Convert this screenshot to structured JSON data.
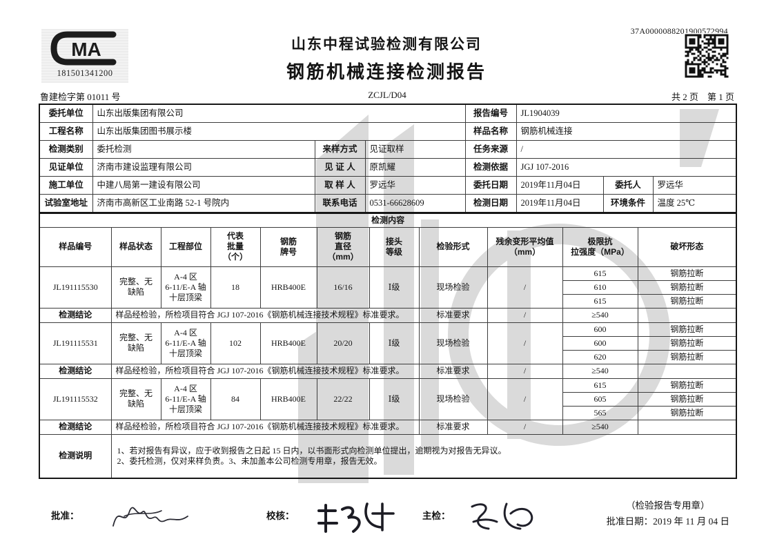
{
  "header": {
    "cma_mark": "MA",
    "cma_number": "181501341200",
    "company": "山东中程试验检测有限公司",
    "report_title": "钢筋机械连接检测报告",
    "cert_no": "鲁建检字第 01011 号",
    "doc_code": "ZCJL/D04",
    "page_info": "共 2 页　第 1 页",
    "barcode_number": "37A0000088201900572994"
  },
  "info": {
    "client_label": "委托单位",
    "client": "山东出版集团有限公司",
    "project_label": "工程名称",
    "project": "山东出版集团图书展示楼",
    "test_type_label": "检测类别",
    "test_type": "委托检测",
    "sampling_method_label": "来样方式",
    "sampling_method": "见证取样",
    "witness_unit_label": "见证单位",
    "witness_unit": "济南市建设监理有限公司",
    "witness_label": "见 证 人",
    "witness": "原凯耀",
    "builder_label": "施工单位",
    "builder": "中建八局第一建设有限公司",
    "sampler_label": "取 样 人",
    "sampler": "罗远华",
    "lab_address_label": "试验室地址",
    "lab_address": "济南市高新区工业南路 52-1 号院内",
    "phone_label": "联系电话",
    "phone": "0531-66628609",
    "report_no_label": "报告编号",
    "report_no": "JL1904039",
    "sample_name_label": "样品名称",
    "sample_name": "钢筋机械连接",
    "task_source_label": "任务来源",
    "task_source": "/",
    "basis_label": "检测依据",
    "basis": "JGJ 107-2016",
    "commission_date_label": "委托日期",
    "commission_date": "2019年11月04日",
    "principal_label": "委托人",
    "principal": "罗远华",
    "test_date_label": "检测日期",
    "test_date": "2019年11月04日",
    "environment_label": "环境条件",
    "environment": "温度 25℃"
  },
  "content": {
    "section_title": "检测内容",
    "col_sample_id": "样品编号",
    "col_state": "样品状态",
    "col_location": "工程部位",
    "col_batch": "代表\n批量\n（个）",
    "col_grade": "钢筋\n牌号",
    "col_diameter": "钢筋\n直径\n（mm）",
    "col_level": "接头\n等级",
    "col_form": "检验形式",
    "col_residual": "残余变形平均值\n（mm）",
    "col_strength": "极限抗\n拉强度（MPa）",
    "col_failure": "破坏形态",
    "conclusion_label": "检测结论",
    "conclusion_text": "样品经检验，所检项目符合 JGJ 107-2016《钢筋机械连接技术规程》标准要求。",
    "requirement_label": "标准要求",
    "residual_requirement": "/",
    "strength_requirement": "≥540",
    "samples": [
      {
        "id": "JL191115530",
        "state": "完整、无\n缺陷",
        "location": "A-4 区\n6-11/E-A 轴\n十层顶梁",
        "batch": "18",
        "grade": "HRB400E",
        "diameter": "16/16",
        "level": "Ⅰ级",
        "form": "现场检验",
        "residual": "/",
        "strengths": [
          "615",
          "610",
          "615"
        ],
        "failures": [
          "钢筋拉断",
          "钢筋拉断",
          "钢筋拉断"
        ]
      },
      {
        "id": "JL191115531",
        "state": "完整、无\n缺陷",
        "location": "A-4 区\n6-11/E-A 轴\n十层顶梁",
        "batch": "102",
        "grade": "HRB400E",
        "diameter": "20/20",
        "level": "Ⅰ级",
        "form": "现场检验",
        "residual": "/",
        "strengths": [
          "600",
          "600",
          "620"
        ],
        "failures": [
          "钢筋拉断",
          "钢筋拉断",
          "钢筋拉断"
        ]
      },
      {
        "id": "JL191115532",
        "state": "完整、无\n缺陷",
        "location": "A-4 区\n6-11/E-A 轴\n十层顶梁",
        "batch": "84",
        "grade": "HRB400E",
        "diameter": "22/22",
        "level": "Ⅰ级",
        "form": "现场检验",
        "residual": "/",
        "strengths": [
          "615",
          "605",
          "565"
        ],
        "failures": [
          "钢筋拉断",
          "钢筋拉断",
          "钢筋拉断"
        ]
      }
    ]
  },
  "notes": {
    "label": "检测说明",
    "line1": "1、若对报告有异议，应于收到报告之日起 15 日内，以书面形式向检测单位提出，逾期视为对报告无异议。",
    "line2": "2、委托检测，仅对来样负责。3、未加盖本公司检测专用章，报告无效。"
  },
  "footer": {
    "approve_label": "批准：",
    "check_label": "校核：",
    "inspect_label": "主检：",
    "seal_note": "（检验报告专用章）",
    "approve_date": "批准日期：2019 年 11 月 04 日"
  },
  "colors": {
    "watermark": "#dadada",
    "ink": "#141414",
    "border": "#3c3c3c"
  }
}
